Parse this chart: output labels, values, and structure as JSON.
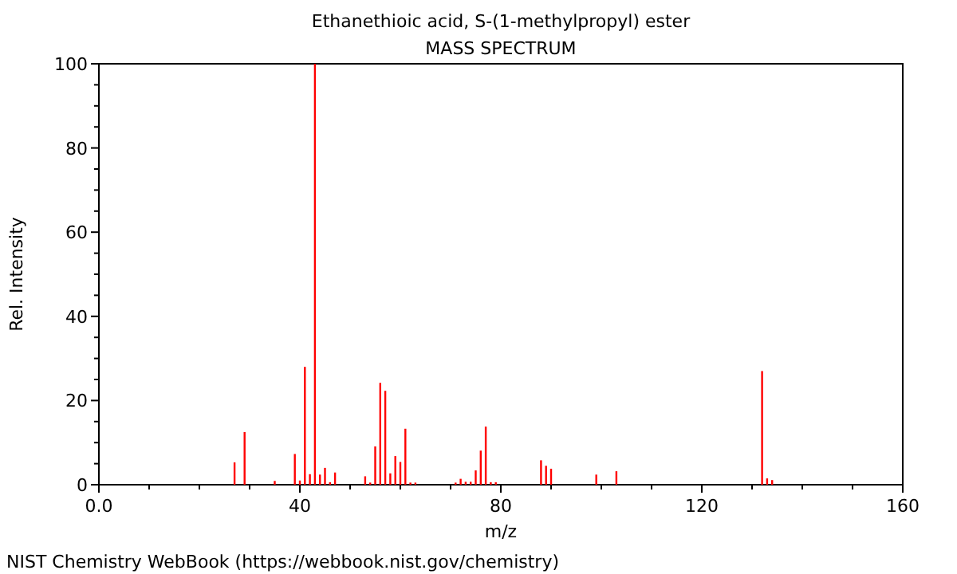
{
  "chart_data": {
    "type": "bar",
    "title": "Ethanethioic acid, S-(1-methylpropyl) ester",
    "subtitle": "MASS SPECTRUM",
    "xlabel": "m/z",
    "ylabel": "Rel. Intensity",
    "x": [
      27,
      29,
      35,
      39,
      40,
      41,
      42,
      43,
      44,
      45,
      46,
      47,
      53,
      54,
      55,
      56,
      57,
      58,
      59,
      60,
      61,
      62,
      63,
      71,
      72,
      73,
      74,
      75,
      76,
      77,
      78,
      79,
      88,
      89,
      90,
      99,
      103,
      132,
      133,
      134
    ],
    "values": [
      5.3,
      12.5,
      0.9,
      7.3,
      1,
      28,
      2.5,
      100,
      2.4,
      4,
      0.6,
      2.9,
      2,
      0.5,
      9.1,
      24.2,
      22.3,
      2.7,
      6.8,
      5.4,
      13.3,
      0.5,
      0.5,
      0.5,
      1.4,
      0.7,
      0.7,
      3.4,
      8.1,
      13.8,
      0.6,
      0.6,
      5.8,
      4.5,
      3.8,
      2.4,
      3.2,
      27,
      1.5,
      1.1
    ],
    "color": "#ff0000",
    "xlim": [
      0,
      160
    ],
    "ylim": [
      0,
      100
    ],
    "xticks": [
      {
        "value": 0,
        "label": "0.0"
      },
      {
        "value": 10,
        "label": null
      },
      {
        "value": 20,
        "label": null
      },
      {
        "value": 30,
        "label": null
      },
      40,
      {
        "value": 50,
        "label": null
      },
      {
        "value": 60,
        "label": null
      },
      {
        "value": 70,
        "label": null
      },
      80,
      {
        "value": 90,
        "label": null
      },
      {
        "value": 100,
        "label": null
      },
      {
        "value": 110,
        "label": null
      },
      120,
      {
        "value": 130,
        "label": null
      },
      {
        "value": 140,
        "label": null
      },
      {
        "value": 150,
        "label": null
      },
      160
    ],
    "yticks": [
      0,
      {
        "value": 5,
        "label": null
      },
      {
        "value": 10,
        "label": null
      },
      {
        "value": 15,
        "label": null
      },
      20,
      {
        "value": 25,
        "label": null
      },
      {
        "value": 30,
        "label": null
      },
      {
        "value": 35,
        "label": null
      },
      40,
      {
        "value": 45,
        "label": null
      },
      {
        "value": 50,
        "label": null
      },
      {
        "value": 55,
        "label": null
      },
      60,
      {
        "value": 65,
        "label": null
      },
      {
        "value": 70,
        "label": null
      },
      {
        "value": 75,
        "label": null
      },
      80,
      {
        "value": 85,
        "label": null
      },
      {
        "value": 90,
        "label": null
      },
      {
        "value": 95,
        "label": null
      },
      100
    ],
    "annotations": [
      "NIST Chemistry WebBook (https://webbook.nist.gov/chemistry)"
    ]
  }
}
